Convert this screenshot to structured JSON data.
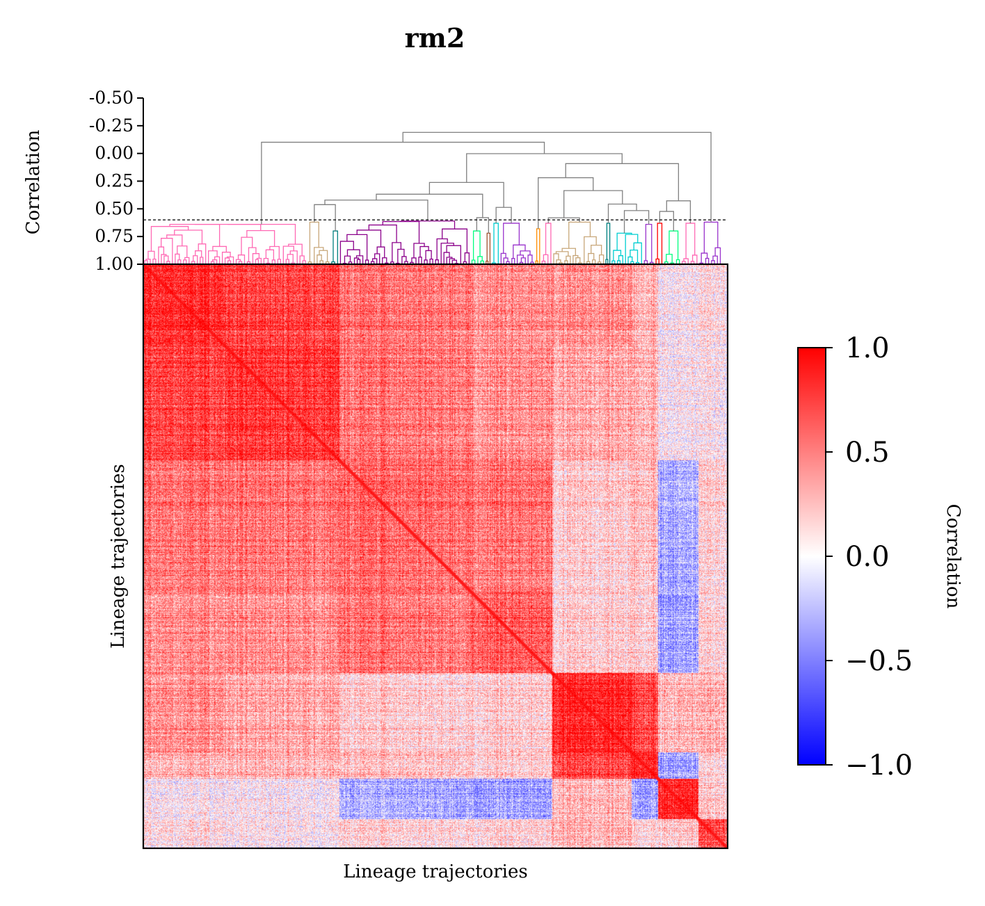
{
  "chart_data": [
    {
      "type": "dendrogram",
      "title": "rm2",
      "ylabel": "Correlation",
      "yticks": [
        "-0.50",
        "-0.25",
        "0.00",
        "0.25",
        "0.50",
        "0.75",
        "1.00"
      ],
      "ylim": [
        -0.5,
        1.0
      ],
      "y_inverted": true,
      "cut_threshold": 0.6,
      "threshold_line": "dashed",
      "leaf_count_estimate": 840,
      "clusters": [
        {
          "color": "#ff69b4",
          "leaf_fraction": [
            0.0,
            0.28
          ],
          "merge_corr": 0.64
        },
        {
          "color": "#c8a77a",
          "leaf_fraction": [
            0.28,
            0.32
          ],
          "merge_corr": 0.62
        },
        {
          "color": "#008080",
          "leaf_fraction": [
            0.32,
            0.335
          ],
          "merge_corr": 0.7
        },
        {
          "color": "#8b008b",
          "leaf_fraction": [
            0.335,
            0.56
          ],
          "merge_corr": 0.61
        },
        {
          "color": "#00ff7f",
          "leaf_fraction": [
            0.56,
            0.585
          ],
          "merge_corr": 0.7
        },
        {
          "color": "#a0522d",
          "leaf_fraction": [
            0.585,
            0.595
          ],
          "merge_corr": 0.72
        },
        {
          "color": "#00ced1",
          "leaf_fraction": [
            0.595,
            0.61
          ],
          "merge_corr": 0.63
        },
        {
          "color": "#9932cc",
          "leaf_fraction": [
            0.61,
            0.67
          ],
          "merge_corr": 0.63
        },
        {
          "color": "#ff8c00",
          "leaf_fraction": [
            0.67,
            0.68
          ],
          "merge_corr": 0.68
        },
        {
          "color": "#ff69b4",
          "leaf_fraction": [
            0.68,
            0.7
          ],
          "merge_corr": 0.63
        },
        {
          "color": "#c8a77a",
          "leaf_fraction": [
            0.7,
            0.79
          ],
          "merge_corr": 0.62
        },
        {
          "color": "#008080",
          "leaf_fraction": [
            0.79,
            0.8
          ],
          "merge_corr": 0.63
        },
        {
          "color": "#00ced1",
          "leaf_fraction": [
            0.8,
            0.855
          ],
          "merge_corr": 0.72
        },
        {
          "color": "#9932cc",
          "leaf_fraction": [
            0.855,
            0.875
          ],
          "merge_corr": 0.64
        },
        {
          "color": "#ff0000",
          "leaf_fraction": [
            0.875,
            0.89
          ],
          "merge_corr": 0.63
        },
        {
          "color": "#00ff7f",
          "leaf_fraction": [
            0.89,
            0.92
          ],
          "merge_corr": 0.7
        },
        {
          "color": "#ff69b4",
          "leaf_fraction": [
            0.92,
            0.95
          ],
          "merge_corr": 0.63
        },
        {
          "color": "#9932cc",
          "leaf_fraction": [
            0.95,
            0.99
          ],
          "merge_corr": 0.62
        }
      ],
      "link_color_above_threshold": "#808080",
      "top_merge_corr": -0.19
    },
    {
      "type": "heatmap",
      "xlabel": "Lineage trajectories",
      "ylabel": "Lineage trajectories",
      "matrix": "clustered correlation matrix (~840 x 840 lineage trajectories), symmetric with diagonal = 1.0",
      "block_boundaries_fraction": [
        0.0,
        0.14,
        0.335,
        0.56,
        0.7,
        0.835,
        0.88,
        0.95,
        1.0
      ],
      "block_mean_corr": [
        [
          0.85,
          0.75,
          0.55,
          0.45,
          0.45,
          0.3,
          0.05,
          0.1
        ],
        [
          0.75,
          0.8,
          0.55,
          0.45,
          0.35,
          0.3,
          0.05,
          0.05
        ],
        [
          0.55,
          0.55,
          0.6,
          0.55,
          0.2,
          0.25,
          -0.3,
          0.15
        ],
        [
          0.45,
          0.45,
          0.55,
          0.65,
          0.2,
          0.2,
          -0.35,
          0.15
        ],
        [
          0.45,
          0.35,
          0.2,
          0.2,
          0.9,
          0.75,
          0.3,
          0.3
        ],
        [
          0.3,
          0.3,
          0.25,
          0.2,
          0.75,
          0.9,
          -0.35,
          0.15
        ],
        [
          0.05,
          0.05,
          -0.3,
          -0.35,
          0.3,
          -0.35,
          0.9,
          0.2
        ],
        [
          0.1,
          0.05,
          0.15,
          0.15,
          0.3,
          0.15,
          0.2,
          0.7
        ]
      ],
      "colorbar": {
        "label": "Correlation",
        "ticks": [
          "1.0",
          "0.5",
          "0.0",
          "−0.5",
          "−1.0"
        ],
        "range": [
          -1.0,
          1.0
        ],
        "colormap": "bwr",
        "colors": {
          "low": "#0000ff",
          "mid": "#ffffff",
          "high": "#ff0000"
        }
      }
    }
  ]
}
